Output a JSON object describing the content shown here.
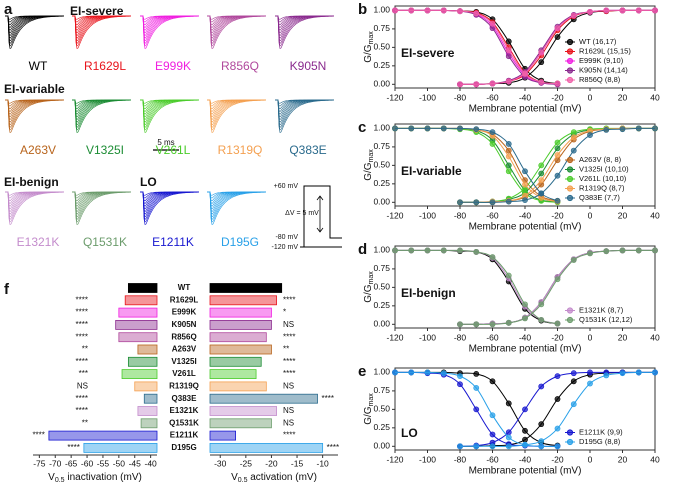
{
  "panel_a": {
    "panel_label": "a",
    "groups": [
      "EI-severe",
      "EI-variable",
      "EI-benign",
      "LO"
    ],
    "variants": [
      {
        "name": "WT",
        "color": "#000000"
      },
      {
        "name": "R1629L",
        "color": "#e8141c"
      },
      {
        "name": "E999K",
        "color": "#f01fe0"
      },
      {
        "name": "R856Q",
        "color": "#b0489c"
      },
      {
        "name": "K905N",
        "color": "#8a2a8e"
      },
      {
        "name": "A263V",
        "color": "#b8641c"
      },
      {
        "name": "V1325I",
        "color": "#1c8c34"
      },
      {
        "name": "V261L",
        "color": "#4ccc2c"
      },
      {
        "name": "R1319Q",
        "color": "#f4a050"
      },
      {
        "name": "Q383E",
        "color": "#2a6a8c"
      },
      {
        "name": "E1321K",
        "color": "#c48ccc"
      },
      {
        "name": "Q1531K",
        "color": "#6c9c6c"
      },
      {
        "name": "E1211K",
        "color": "#1818d0"
      },
      {
        "name": "D195G",
        "color": "#28a0e8"
      }
    ],
    "scale_bar": "5 ms",
    "protocol": {
      "top": "+60 mV",
      "mid": "-80 mV",
      "bottom": "-120 mV",
      "step": "ΔV = 5 mV"
    }
  },
  "chart_data": [
    {
      "type": "line",
      "panel_label": "b",
      "title": "EI-severe",
      "xlabel": "Membrane potential (mV)",
      "ylabel": "G/G",
      "ylabel_sub": "max",
      "xlim": [
        -120,
        40
      ],
      "xticks": [
        -120,
        -100,
        -80,
        -60,
        -40,
        -20,
        0,
        20,
        40
      ],
      "ylim": [
        -0.05,
        1.06
      ],
      "yticks": [
        {
          "value": 0,
          "label": "0.00"
        },
        {
          "value": 0.25,
          "label": "0.25"
        },
        {
          "value": 0.5,
          "label": "0.50"
        },
        {
          "value": 0.75,
          "label": "0.75"
        },
        {
          "value": 1,
          "label": "1.00"
        }
      ],
      "legend": "lower right",
      "x_activation": [
        -80,
        -70,
        -60,
        -50,
        -40,
        -30,
        -20,
        -10,
        0,
        10,
        20,
        30,
        40
      ],
      "x_inactivation": [
        -120,
        -110,
        -100,
        -90,
        -80,
        -70,
        -60,
        -50,
        -40,
        -30,
        -20
      ],
      "series": [
        {
          "name": "WT (16,17)",
          "color": "#000000",
          "activation": [
            0,
            0,
            0.01,
            0.02,
            0.09,
            0.3,
            0.64,
            0.88,
            0.97,
            0.99,
            1,
            1,
            1
          ],
          "inactivation": [
            1,
            1,
            1,
            1,
            0.99,
            0.98,
            0.88,
            0.58,
            0.21,
            0.05,
            0.01
          ]
        },
        {
          "name": "R1629L (15,15)",
          "color": "#e8141c",
          "activation": [
            0,
            0,
            0.01,
            0.04,
            0.13,
            0.39,
            0.73,
            0.92,
            0.98,
            0.99,
            1,
            1,
            1
          ],
          "inactivation": [
            1,
            1,
            1,
            1,
            0.99,
            0.97,
            0.84,
            0.5,
            0.16,
            0.03,
            0.01
          ]
        },
        {
          "name": "E999K (9,10)",
          "color": "#f01fe0",
          "activation": [
            0,
            0,
            0.01,
            0.04,
            0.15,
            0.43,
            0.76,
            0.93,
            0.98,
            1,
            1,
            1,
            1
          ],
          "inactivation": [
            1,
            1,
            1,
            1,
            0.99,
            0.95,
            0.79,
            0.42,
            0.12,
            0.02,
            0
          ]
        },
        {
          "name": "K905N (14,14)",
          "color": "#8a2a8e",
          "activation": [
            0,
            0,
            0.01,
            0.05,
            0.17,
            0.46,
            0.78,
            0.94,
            0.98,
            1,
            1,
            1,
            1
          ],
          "inactivation": [
            1,
            1,
            1,
            1,
            0.99,
            0.94,
            0.76,
            0.38,
            0.1,
            0.02,
            0
          ]
        },
        {
          "name": "R856Q (8,8)",
          "color": "#f060a8",
          "activation": [
            0,
            0,
            0.01,
            0.04,
            0.15,
            0.43,
            0.76,
            0.93,
            0.98,
            1,
            1,
            1,
            1
          ],
          "inactivation": [
            1,
            1,
            1,
            1,
            0.99,
            0.96,
            0.82,
            0.46,
            0.14,
            0.03,
            0.01
          ]
        }
      ]
    },
    {
      "type": "line",
      "panel_label": "c",
      "title": "EI-variable",
      "xlabel": "Membrane potential (mV)",
      "ylabel": "G/G",
      "ylabel_sub": "max",
      "xlim": [
        -120,
        40
      ],
      "xticks": [
        -120,
        -100,
        -80,
        -60,
        -40,
        -20,
        0,
        20,
        40
      ],
      "ylim": [
        -0.05,
        1.06
      ],
      "yticks": [
        {
          "value": 0,
          "label": "0.00"
        },
        {
          "value": 0.25,
          "label": "0.25"
        },
        {
          "value": 0.5,
          "label": "0.50"
        },
        {
          "value": 0.75,
          "label": "0.75"
        },
        {
          "value": 1,
          "label": "1.00"
        }
      ],
      "legend": "lower right",
      "x_activation": [
        -80,
        -70,
        -60,
        -50,
        -40,
        -30,
        -20,
        -10,
        0,
        10,
        20,
        30,
        40
      ],
      "x_inactivation": [
        -120,
        -110,
        -100,
        -90,
        -80,
        -70,
        -60,
        -50,
        -40,
        -30,
        -20
      ],
      "series": [
        {
          "name": "A263V (8, 8)",
          "color": "#b8641c",
          "activation": [
            0,
            0,
            0,
            0.02,
            0.07,
            0.24,
            0.57,
            0.85,
            0.96,
            0.99,
            1,
            1,
            1
          ],
          "inactivation": [
            1,
            1,
            1,
            1,
            1,
            0.98,
            0.92,
            0.7,
            0.3,
            0.08,
            0.02
          ]
        },
        {
          "name": "V1325I (10,10)",
          "color": "#1c8c34",
          "activation": [
            0,
            0,
            0.01,
            0.04,
            0.13,
            0.39,
            0.73,
            0.92,
            0.98,
            0.99,
            1,
            1,
            1
          ],
          "inactivation": [
            1,
            1,
            1,
            1,
            0.99,
            0.97,
            0.84,
            0.5,
            0.16,
            0.03,
            0.01
          ]
        },
        {
          "name": "V261L (10,10)",
          "color": "#4ccc2c",
          "activation": [
            0,
            0,
            0.01,
            0.05,
            0.19,
            0.5,
            0.81,
            0.95,
            0.99,
            1,
            1,
            1,
            1
          ],
          "inactivation": [
            1,
            1,
            1,
            1,
            0.99,
            0.95,
            0.79,
            0.42,
            0.12,
            0.02,
            0
          ]
        },
        {
          "name": "R1319Q (8,7)",
          "color": "#f4a050",
          "activation": [
            0,
            0,
            0.01,
            0.02,
            0.09,
            0.3,
            0.64,
            0.88,
            0.97,
            0.99,
            1,
            1,
            1
          ],
          "inactivation": [
            1,
            1,
            1,
            1,
            1,
            0.98,
            0.9,
            0.62,
            0.24,
            0.06,
            0.01
          ]
        },
        {
          "name": "Q383E (7,7)",
          "color": "#2a6a8c",
          "activation": [
            0,
            0,
            0,
            0.01,
            0.03,
            0.12,
            0.36,
            0.7,
            0.91,
            0.98,
            0.99,
            1,
            1
          ],
          "inactivation": [
            1,
            1,
            1,
            1,
            1,
            0.99,
            0.95,
            0.79,
            0.42,
            0.12,
            0.02
          ]
        }
      ]
    },
    {
      "type": "line",
      "panel_label": "d",
      "title": "EI-benign",
      "xlabel": "Membrane potential (mV)",
      "ylabel": "G/G",
      "ylabel_sub": "max",
      "xlim": [
        -120,
        40
      ],
      "xticks": [
        -120,
        -100,
        -80,
        -60,
        -40,
        -20,
        0,
        20,
        40
      ],
      "ylim": [
        -0.05,
        1.06
      ],
      "yticks": [
        {
          "value": 0,
          "label": "0.00"
        },
        {
          "value": 0.25,
          "label": "0.25"
        },
        {
          "value": 0.5,
          "label": "0.50"
        },
        {
          "value": 0.75,
          "label": "0.75"
        },
        {
          "value": 1,
          "label": "1.00"
        }
      ],
      "legend": "lower right",
      "x_activation": [
        -80,
        -70,
        -60,
        -50,
        -40,
        -30,
        -20,
        -10,
        0,
        10,
        20,
        30,
        40
      ],
      "x_inactivation": [
        -120,
        -110,
        -100,
        -90,
        -80,
        -70,
        -60,
        -50,
        -40,
        -30,
        -20
      ],
      "series": [
        {
          "color": "#000000",
          "activation": [
            0,
            0,
            0.01,
            0.02,
            0.09,
            0.3,
            0.64,
            0.88,
            0.97,
            0.99,
            1,
            1,
            1
          ],
          "inactivation": [
            1,
            1,
            1,
            1,
            0.99,
            0.98,
            0.88,
            0.58,
            0.21,
            0.05,
            0.01
          ]
        },
        {
          "name": "E1321K (8,7)",
          "color": "#c48ccc",
          "activation": [
            0,
            0,
            0.01,
            0.02,
            0.09,
            0.3,
            0.64,
            0.88,
            0.97,
            0.99,
            1,
            1,
            1
          ],
          "inactivation": [
            1,
            1,
            1,
            1,
            1,
            0.98,
            0.9,
            0.62,
            0.24,
            0.06,
            0.01
          ]
        },
        {
          "name": "Q1531K (12,12)",
          "color": "#6c9c6c",
          "activation": [
            0,
            0,
            0,
            0.02,
            0.08,
            0.27,
            0.61,
            0.87,
            0.96,
            0.99,
            1,
            1,
            1
          ],
          "inactivation": [
            1,
            1,
            1,
            1,
            1,
            0.98,
            0.91,
            0.66,
            0.27,
            0.06,
            0.01
          ]
        }
      ]
    },
    {
      "type": "line",
      "panel_label": "e",
      "title": "LO",
      "xlabel": "Membrane potential (mV)",
      "ylabel": "G/G",
      "ylabel_sub": "max",
      "xlim": [
        -120,
        40
      ],
      "xticks": [
        -120,
        -100,
        -80,
        -60,
        -40,
        -20,
        0,
        20,
        40
      ],
      "ylim": [
        -0.05,
        1.06
      ],
      "yticks": [
        {
          "value": 0,
          "label": "0.00"
        },
        {
          "value": 0.25,
          "label": "0.25"
        },
        {
          "value": 0.5,
          "label": "0.50"
        },
        {
          "value": 0.75,
          "label": "0.75"
        },
        {
          "value": 1,
          "label": "1.00"
        }
      ],
      "legend": "lower right",
      "x_activation": [
        -80,
        -70,
        -60,
        -50,
        -40,
        -30,
        -20,
        -10,
        0,
        10,
        20,
        30,
        40
      ],
      "x_inactivation": [
        -120,
        -110,
        -100,
        -90,
        -80,
        -70,
        -60,
        -50,
        -40,
        -30,
        -20
      ],
      "series": [
        {
          "color": "#000000",
          "activation": [
            0,
            0,
            0.01,
            0.02,
            0.09,
            0.3,
            0.64,
            0.88,
            0.97,
            0.99,
            1,
            1,
            1
          ],
          "inactivation": [
            1,
            1,
            1,
            1,
            0.99,
            0.98,
            0.88,
            0.58,
            0.21,
            0.05,
            0.01
          ]
        },
        {
          "name": "E1211K (9,9)",
          "color": "#1818d0",
          "activation": [
            0,
            0.01,
            0.05,
            0.19,
            0.5,
            0.81,
            0.95,
            0.99,
            1,
            1,
            1,
            1,
            1
          ],
          "inactivation": [
            1,
            1,
            0.99,
            0.97,
            0.84,
            0.5,
            0.16,
            0.03,
            0.01,
            0,
            0
          ]
        },
        {
          "name": "D195G (8,8)",
          "color": "#28a0e8",
          "activation": [
            0,
            0,
            0,
            0,
            0.02,
            0.07,
            0.24,
            0.57,
            0.85,
            0.96,
            0.99,
            1,
            1
          ],
          "inactivation": [
            1,
            1,
            1,
            0.99,
            0.95,
            0.79,
            0.42,
            0.12,
            0.02,
            0,
            0
          ]
        }
      ]
    },
    {
      "type": "bar",
      "panel_label": "f",
      "categories": [
        "WT",
        "R1629L",
        "E999K",
        "K905N",
        "R856Q",
        "A263V",
        "V1325I",
        "V261L",
        "R1319Q",
        "Q383E",
        "E1321K",
        "Q1531K",
        "E1211K",
        "D195G"
      ],
      "colors": [
        "#000000",
        "#e8141c",
        "#f01fe0",
        "#8a2a8e",
        "#b0489c",
        "#b8641c",
        "#1c8c34",
        "#4ccc2c",
        "#f4a050",
        "#2a6a8c",
        "#c48ccc",
        "#6c9c6c",
        "#1818d0",
        "#28a0e8"
      ],
      "inactivation": {
        "values": [
          -47,
          -48,
          -50,
          -51,
          -50,
          -44,
          -47,
          -49,
          -45,
          -42,
          -44,
          -43,
          -72,
          -61
        ],
        "stars": [
          null,
          "****",
          "****",
          "****",
          "****",
          "**",
          "****",
          "***",
          "NS",
          "****",
          "****",
          "**",
          "****",
          "****"
        ],
        "xlim": [
          -77,
          -38
        ],
        "xticks": [
          -75,
          -70,
          -65,
          -60,
          -55,
          -50,
          -45,
          -40
        ],
        "xlabel": {
          "main": "V",
          "sub": "0.5",
          "rest": " inactivation (mV)"
        }
      },
      "activation": {
        "values": [
          -18,
          -19,
          -20,
          -20,
          -21,
          -20,
          -22,
          -23,
          -21,
          -11,
          -19,
          -20,
          -27,
          -10
        ],
        "stars": [
          null,
          "****",
          "*",
          "NS",
          "****",
          "**",
          "****",
          "****",
          "NS",
          "****",
          "NS",
          "NS",
          "****",
          "****"
        ],
        "xlim": [
          -32,
          -7
        ],
        "xticks": [
          -30,
          -25,
          -20,
          -15,
          -10
        ],
        "xlabel": {
          "main": "V",
          "sub": "0.5",
          "rest": " activation (mV)"
        }
      }
    }
  ]
}
